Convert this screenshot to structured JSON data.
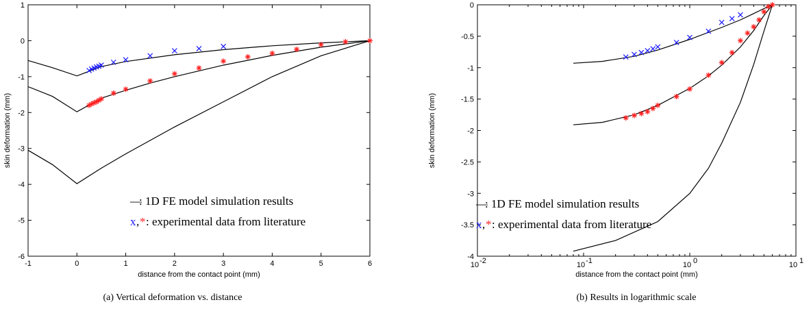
{
  "chart_data": [
    {
      "type": "line",
      "caption": "(a) Vertical deformation vs. distance",
      "xlabel": "distance from the contact point (mm)",
      "ylabel": "skin deformation (mm)",
      "xlim": [
        -1,
        6
      ],
      "ylim": [
        -6,
        1
      ],
      "xscale": "linear",
      "xticks": [
        -1,
        0,
        1,
        2,
        3,
        4,
        5,
        6
      ],
      "yticks": [
        1,
        0,
        -1,
        -2,
        -3,
        -4,
        -5,
        -6
      ],
      "xtick_labels": [
        "-1",
        "0",
        "1",
        "2",
        "3",
        "4",
        "5",
        "6"
      ],
      "ytick_labels": [
        "1",
        "0",
        "-1",
        "-2",
        "-3",
        "-4",
        "-5",
        "-6"
      ],
      "grid": false,
      "legend_position": "lower-right",
      "legend": {
        "line_symbol": "—",
        "line_label": ": 1D FE model simulation results",
        "marker_x": "x",
        "marker_sep": ",",
        "marker_star": "*",
        "marker_label": ": experimental data from literature"
      },
      "series": [
        {
          "style": "line",
          "color": "#000000",
          "x": [
            -1,
            -0.5,
            0,
            0.5,
            1,
            2,
            3,
            4,
            5,
            6
          ],
          "y": [
            -0.55,
            -0.75,
            -0.98,
            -0.72,
            -0.58,
            -0.39,
            -0.25,
            -0.14,
            -0.06,
            0
          ]
        },
        {
          "style": "line",
          "color": "#000000",
          "x": [
            -1,
            -0.5,
            0,
            0.3,
            0.5,
            1,
            1.5,
            2,
            3,
            4,
            5,
            6
          ],
          "y": [
            -1.28,
            -1.55,
            -1.98,
            -1.75,
            -1.6,
            -1.38,
            -1.18,
            -1.0,
            -0.68,
            -0.41,
            -0.18,
            0
          ]
        },
        {
          "style": "line",
          "color": "#000000",
          "x": [
            -1,
            -0.5,
            0,
            0.5,
            1,
            2,
            3,
            4,
            5,
            6
          ],
          "y": [
            -3.05,
            -3.45,
            -3.98,
            -3.55,
            -3.15,
            -2.4,
            -1.7,
            -1.0,
            -0.42,
            0
          ]
        },
        {
          "style": "marker",
          "marker": "x",
          "color": "#1a1aff",
          "x": [
            0.25,
            0.3,
            0.35,
            0.4,
            0.45,
            0.5,
            0.75,
            1.0,
            1.5,
            2.0,
            2.5,
            3.0
          ],
          "y": [
            -0.83,
            -0.79,
            -0.76,
            -0.73,
            -0.71,
            -0.68,
            -0.6,
            -0.53,
            -0.42,
            -0.28,
            -0.22,
            -0.16
          ]
        },
        {
          "style": "marker",
          "marker": "*",
          "color": "#ff2020",
          "x": [
            0.25,
            0.3,
            0.35,
            0.4,
            0.45,
            0.5,
            0.75,
            1.0,
            1.5,
            2.0,
            2.5,
            3.0,
            3.5,
            4.0,
            4.5,
            5.0,
            5.5,
            6.0
          ],
          "y": [
            -1.8,
            -1.76,
            -1.73,
            -1.7,
            -1.66,
            -1.62,
            -1.46,
            -1.35,
            -1.12,
            -0.92,
            -0.76,
            -0.57,
            -0.45,
            -0.35,
            -0.24,
            -0.11,
            -0.03,
            0
          ]
        }
      ]
    },
    {
      "type": "line",
      "caption": "(b) Results in logarithmic scale",
      "xlabel": "distance from the contact point (mm)",
      "ylabel": "skin deformation (mm)",
      "xlim": [
        0.01,
        10
      ],
      "ylim": [
        -4,
        0
      ],
      "xscale": "log",
      "xticks": [
        0.01,
        0.1,
        1,
        10
      ],
      "yticks": [
        0,
        -0.5,
        -1,
        -1.5,
        -2,
        -2.5,
        -3,
        -3.5,
        -4
      ],
      "xtick_labels": [
        {
          "base": "10",
          "exp": "-2"
        },
        {
          "base": "10",
          "exp": "-1"
        },
        {
          "base": "10",
          "exp": "0"
        },
        {
          "base": "10",
          "exp": "1"
        }
      ],
      "ytick_labels": [
        "0",
        "-0.5",
        "-1",
        "-1.5",
        "-2",
        "-2.5",
        "-3",
        "-3.5",
        "-4"
      ],
      "grid": false,
      "legend_position": "lower-left",
      "legend": {
        "line_symbol": "—",
        "line_label": ": 1D FE model simulation results",
        "marker_x": "x",
        "marker_sep": ",",
        "marker_star": "*",
        "marker_label": ": experimental data from literature"
      },
      "series": [
        {
          "style": "line",
          "color": "#000000",
          "x": [
            0.08,
            0.15,
            0.3,
            0.5,
            1,
            2,
            3,
            4,
            5,
            6
          ],
          "y": [
            -0.93,
            -0.9,
            -0.82,
            -0.72,
            -0.55,
            -0.36,
            -0.24,
            -0.14,
            -0.06,
            0
          ]
        },
        {
          "style": "line",
          "color": "#000000",
          "x": [
            0.08,
            0.15,
            0.3,
            0.5,
            1,
            1.5,
            2,
            3,
            4,
            5,
            6
          ],
          "y": [
            -1.91,
            -1.87,
            -1.75,
            -1.6,
            -1.33,
            -1.13,
            -0.96,
            -0.67,
            -0.41,
            -0.17,
            0
          ]
        },
        {
          "style": "line",
          "color": "#000000",
          "x": [
            0.08,
            0.2,
            0.5,
            1,
            1.5,
            2,
            3,
            4,
            5,
            6
          ],
          "y": [
            -3.92,
            -3.75,
            -3.45,
            -3.0,
            -2.6,
            -2.2,
            -1.55,
            -0.95,
            -0.42,
            0
          ]
        },
        {
          "style": "marker",
          "marker": "x",
          "color": "#1a1aff",
          "x": [
            0.25,
            0.3,
            0.35,
            0.4,
            0.45,
            0.5,
            0.75,
            1.0,
            1.5,
            2.0,
            2.5,
            3.0
          ],
          "y": [
            -0.83,
            -0.79,
            -0.76,
            -0.73,
            -0.7,
            -0.67,
            -0.6,
            -0.52,
            -0.42,
            -0.28,
            -0.22,
            -0.16
          ]
        },
        {
          "style": "marker",
          "marker": "*",
          "color": "#ff2020",
          "x": [
            0.25,
            0.3,
            0.35,
            0.4,
            0.45,
            0.5,
            0.75,
            1.0,
            1.5,
            2.0,
            2.5,
            3.0,
            3.5,
            4.0,
            4.5,
            5.0,
            5.5,
            6.0
          ],
          "y": [
            -1.8,
            -1.76,
            -1.73,
            -1.7,
            -1.65,
            -1.6,
            -1.46,
            -1.34,
            -1.12,
            -0.92,
            -0.76,
            -0.57,
            -0.45,
            -0.35,
            -0.24,
            -0.11,
            -0.03,
            0
          ]
        }
      ]
    }
  ]
}
